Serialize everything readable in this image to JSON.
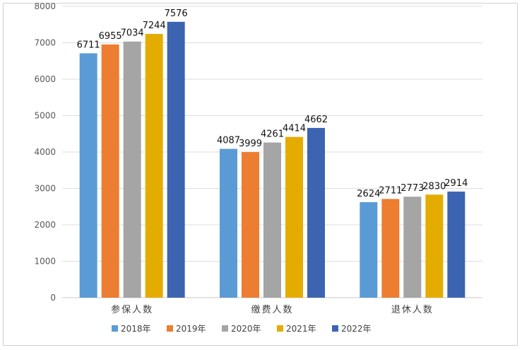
{
  "chart_data": {
    "type": "bar",
    "title": "",
    "xlabel": "",
    "ylabel": "",
    "categories": [
      "参保人数",
      "缴费人数",
      "退休人数"
    ],
    "ylim": [
      0,
      8000
    ],
    "yticks": [
      0,
      1000,
      2000,
      3000,
      4000,
      5000,
      6000,
      7000,
      8000
    ],
    "grid": true,
    "legend_position": "bottom",
    "series": [
      {
        "name": "2018年",
        "color": "#5b9bd5",
        "values": [
          6711,
          4087,
          2624
        ]
      },
      {
        "name": "2019年",
        "color": "#ed7d31",
        "values": [
          6955,
          3999,
          2711
        ]
      },
      {
        "name": "2020年",
        "color": "#a5a5a5",
        "values": [
          7034,
          4261,
          2773
        ]
      },
      {
        "name": "2021年",
        "color": "#e5ac00",
        "values": [
          7244,
          4414,
          2830
        ]
      },
      {
        "name": "2022年",
        "color": "#3c64b1",
        "values": [
          7576,
          4662,
          2914
        ]
      }
    ]
  }
}
